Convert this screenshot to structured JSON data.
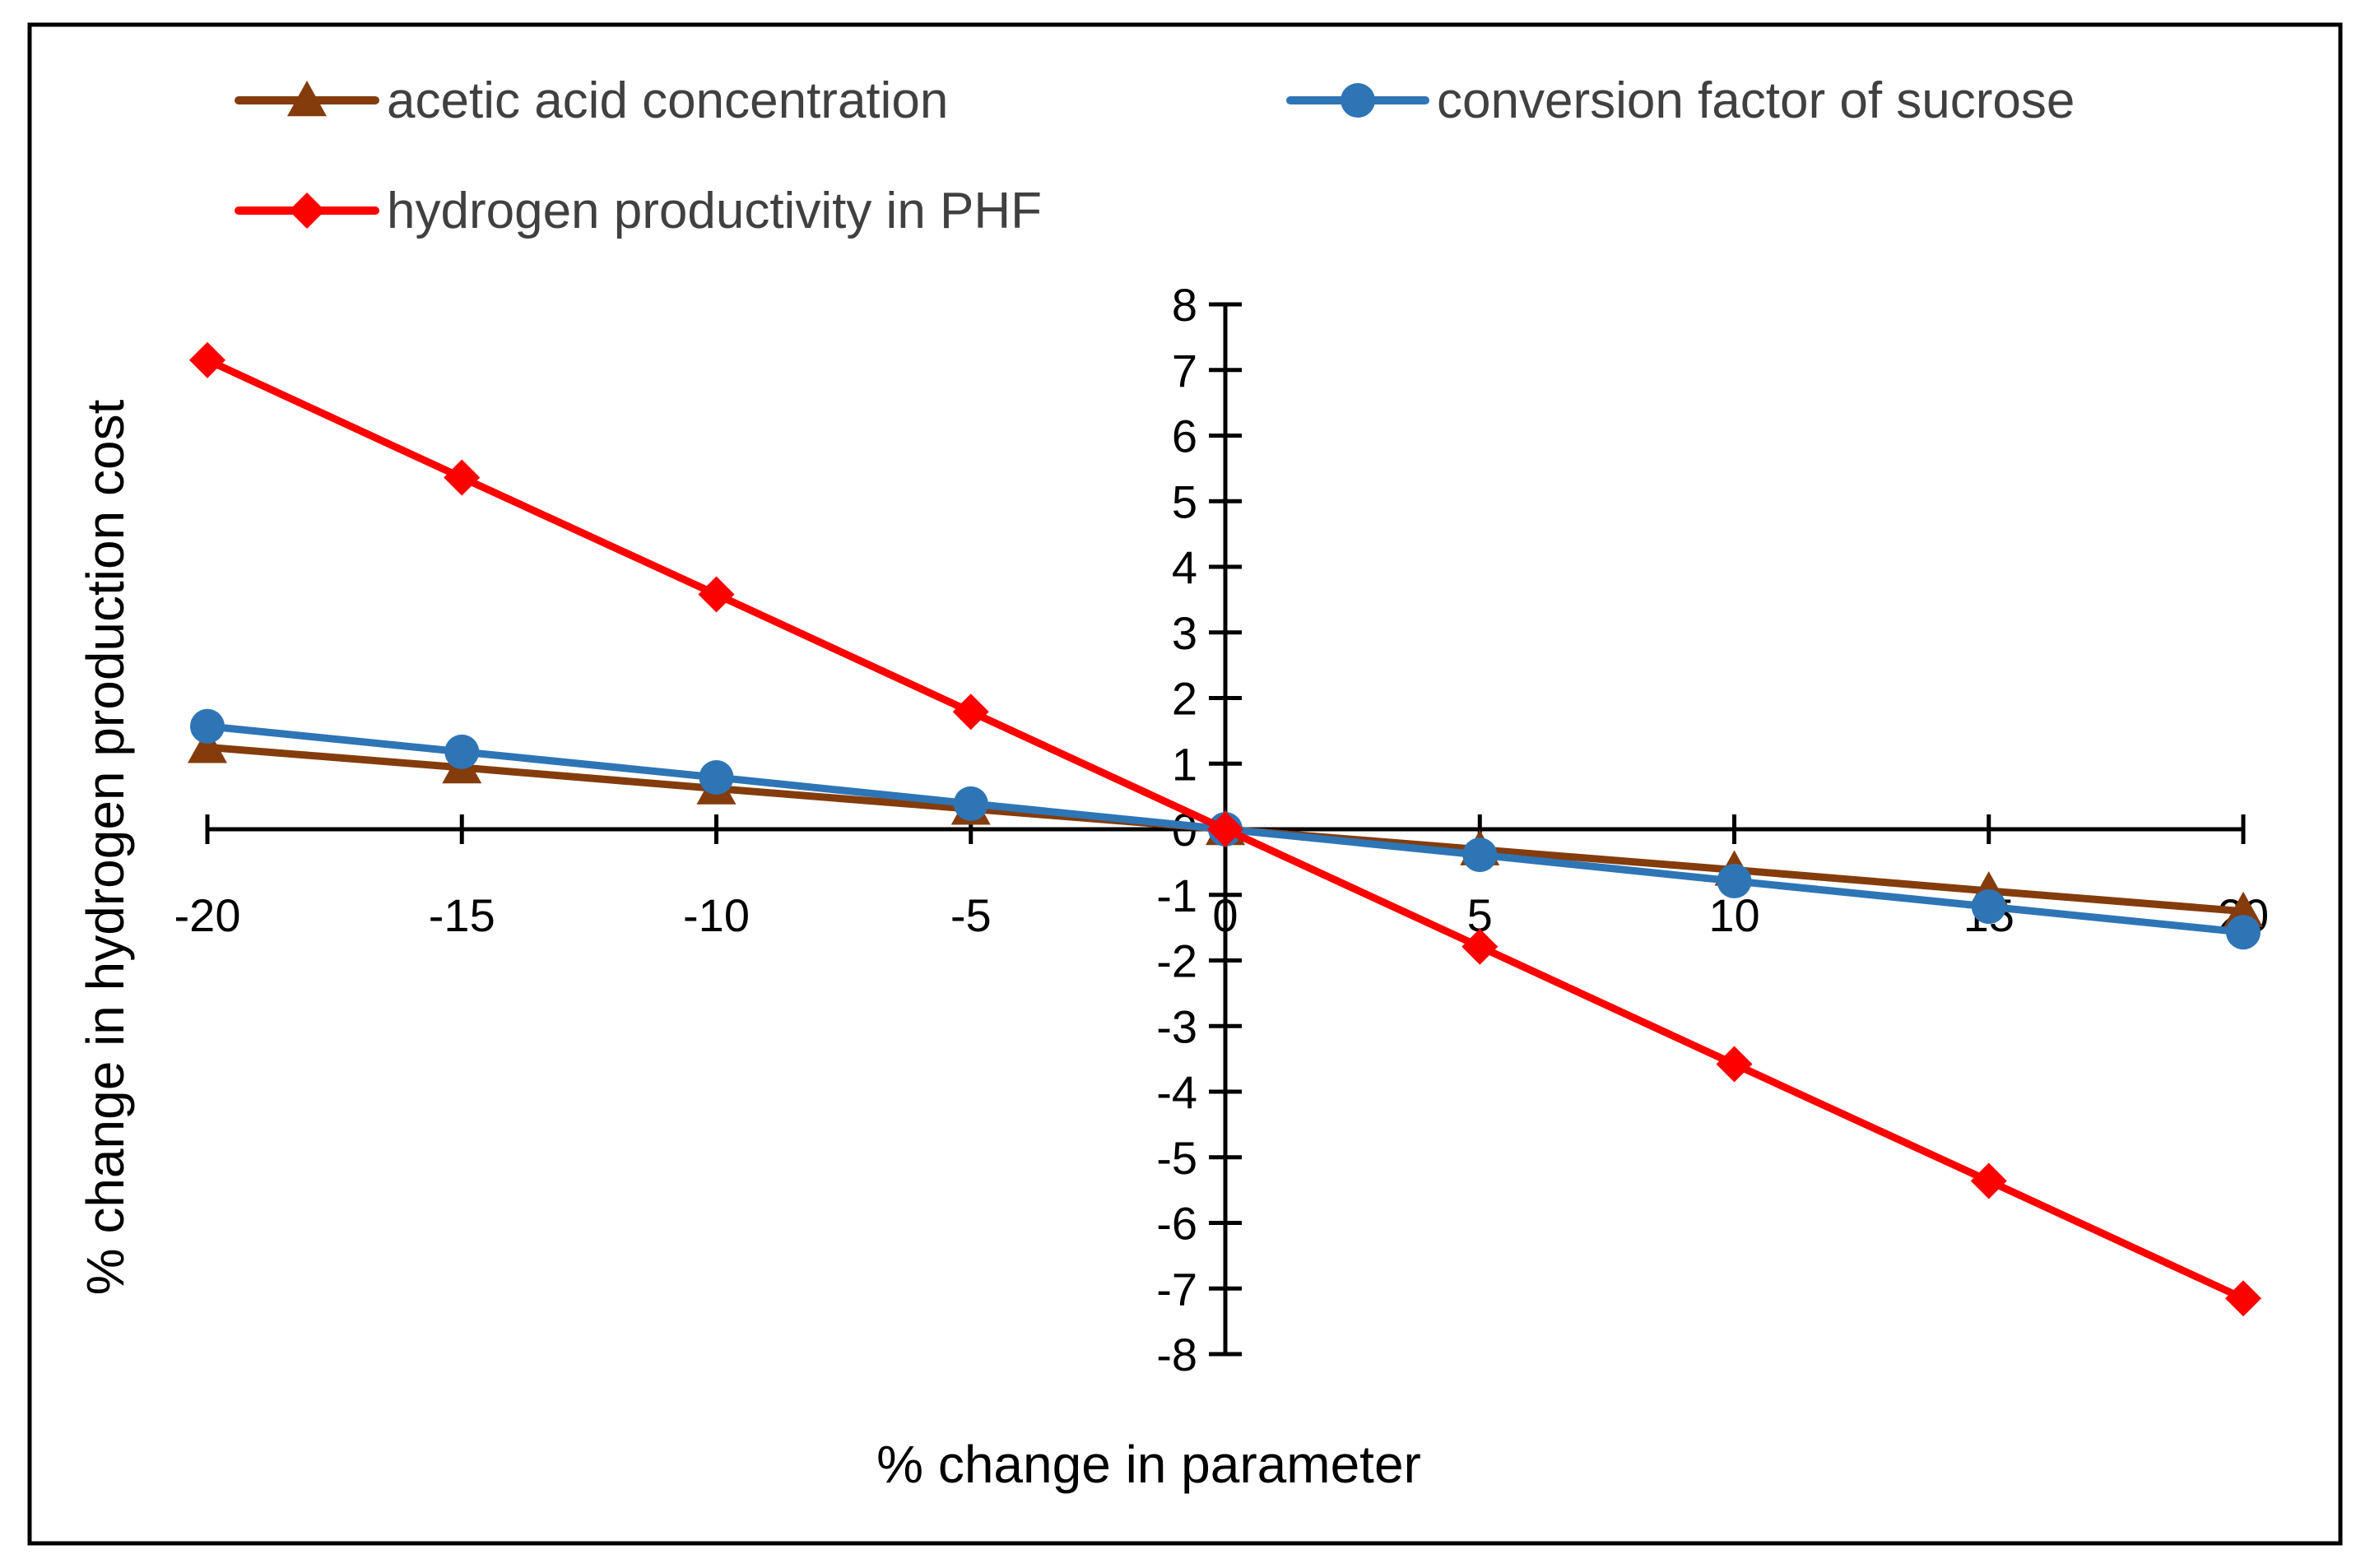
{
  "chart_data": {
    "type": "line",
    "title": "",
    "xlabel": "% change in parameter",
    "ylabel": "% change in hydrogen production cost",
    "xlim": [
      -20,
      20
    ],
    "ylim": [
      -8,
      8
    ],
    "x_ticks": [
      "-20",
      "-15",
      "-10",
      "-5",
      "0",
      "5",
      "10",
      "15",
      "20"
    ],
    "y_ticks": [
      "8",
      "7",
      "6",
      "5",
      "4",
      "3",
      "2",
      "1",
      "0",
      "-1",
      "-2",
      "-3",
      "-4",
      "-5",
      "-6",
      "-7",
      "-8"
    ],
    "x": [
      -20,
      -15,
      -10,
      -5,
      0,
      5,
      10,
      15,
      20
    ],
    "legend_position": "top",
    "series": [
      {
        "name": "acetic acid concentration",
        "color": "#843c0c",
        "marker": "triangle",
        "values": [
          1.25,
          0.94,
          0.62,
          0.31,
          0,
          -0.31,
          -0.62,
          -0.94,
          -1.25
        ]
      },
      {
        "name": "conversion factor of sucrose",
        "color": "#2e75b6",
        "marker": "circle",
        "values": [
          1.57,
          1.18,
          0.79,
          0.39,
          0,
          -0.39,
          -0.79,
          -1.18,
          -1.57
        ]
      },
      {
        "name": "hydrogen productivity in PHF",
        "color": "#ff0000",
        "marker": "diamond",
        "values": [
          7.15,
          5.36,
          3.58,
          1.79,
          0,
          -1.79,
          -3.58,
          -5.36,
          -7.15
        ]
      }
    ]
  }
}
